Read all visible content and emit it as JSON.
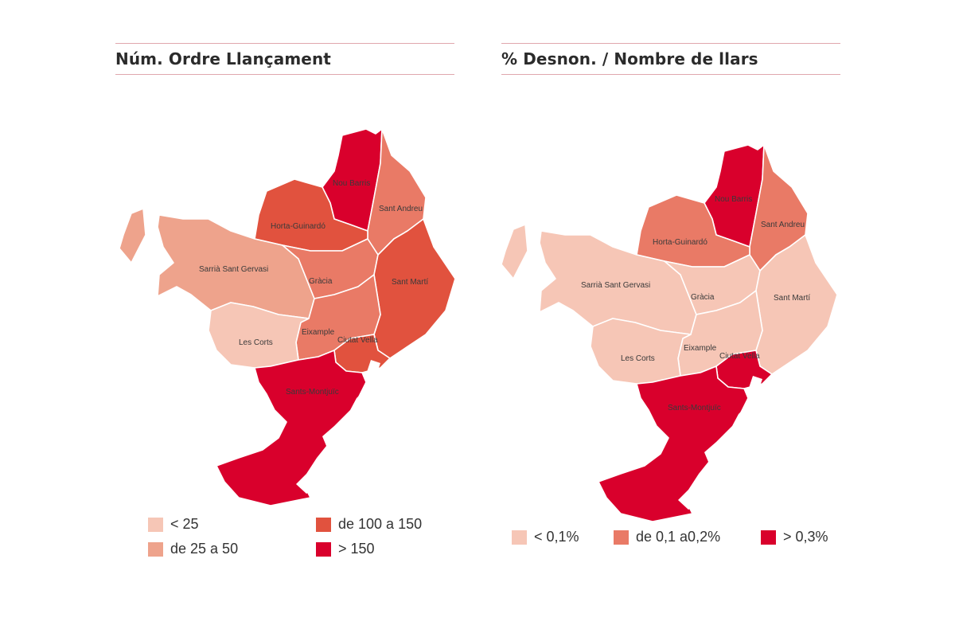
{
  "colors": {
    "c1": "#f6c6b6",
    "c2": "#eea38c",
    "c3": "#e56a52",
    "c4": "#e1523e",
    "c5": "#d9002c",
    "c6": "#e97a66"
  },
  "maps": [
    {
      "title": "Núm. Ordre Llançament",
      "districts": [
        {
          "name": "Nou Barris",
          "class": "c5"
        },
        {
          "name": "Sant Andreu",
          "class": "c6"
        },
        {
          "name": "Horta-Guinardó",
          "class": "c4"
        },
        {
          "name": "Sarrià Sant Gervasi",
          "class": "c2"
        },
        {
          "name": "Gràcia",
          "class": "c6"
        },
        {
          "name": "Sant Martí",
          "class": "c4"
        },
        {
          "name": "Eixample",
          "class": "c6"
        },
        {
          "name": "Les Corts",
          "class": "c1"
        },
        {
          "name": "Ciutat Vella",
          "class": "c4"
        },
        {
          "name": "Sants-Montjuïc",
          "class": "c5"
        }
      ],
      "legend": [
        {
          "label": "< 25",
          "color": "#f6c6b6"
        },
        {
          "label": "de 100 a 150",
          "color": "#e1523e"
        },
        {
          "label": "de 25 a 50",
          "color": "#eea38c"
        },
        {
          "label": "> 150",
          "color": "#d9002c"
        }
      ]
    },
    {
      "title": "% Desnon. / Nombre de llars",
      "districts": [
        {
          "name": "Nou Barris",
          "class": "c5"
        },
        {
          "name": "Sant Andreu",
          "class": "c6"
        },
        {
          "name": "Horta-Guinardó",
          "class": "c6"
        },
        {
          "name": "Sarrià Sant Gervasi",
          "class": "c1"
        },
        {
          "name": "Gràcia",
          "class": "c1"
        },
        {
          "name": "Sant Martí",
          "class": "c1"
        },
        {
          "name": "Eixample",
          "class": "c1"
        },
        {
          "name": "Les Corts",
          "class": "c1"
        },
        {
          "name": "Ciutat Vella",
          "class": "c5"
        },
        {
          "name": "Sants-Montjuïc",
          "class": "c5"
        }
      ],
      "legend": [
        {
          "label": "< 0,1%",
          "color": "#f6c6b6"
        },
        {
          "label": "de 0,1 a0,2%",
          "color": "#e97a66"
        },
        {
          "label": "> 0,3%",
          "color": "#d9002c"
        }
      ]
    }
  ]
}
